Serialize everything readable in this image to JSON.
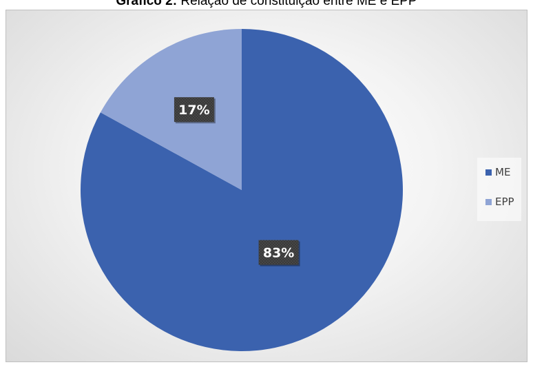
{
  "title": {
    "bold_part": "Gráfico 2:",
    "rest": " Relação de constituição entre ME e EPP"
  },
  "chart_data": {
    "type": "pie",
    "categories": [
      "ME",
      "EPP"
    ],
    "values": [
      83,
      17
    ],
    "labels": [
      "83%",
      "17%"
    ],
    "colors": [
      "#3b62ae",
      "#8fa4d5"
    ],
    "start_angle_deg": 0,
    "direction": "clockwise",
    "legend_position": "right"
  }
}
